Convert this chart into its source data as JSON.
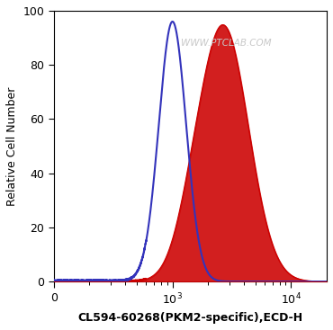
{
  "title": "",
  "xlabel": "CL594-60268(PKM2-specific),ECD-H",
  "ylabel": "Relative Cell Number",
  "xlim_min_log": 2.0,
  "xlim_max_log": 4.3,
  "ylim": [
    0,
    100
  ],
  "yticks": [
    0,
    20,
    40,
    60,
    80,
    100
  ],
  "xticks_pos": [
    100,
    1000,
    10000
  ],
  "xticks_labels": [
    "0",
    "$10^3$",
    "$10^4$"
  ],
  "blue_peak_log": 3.0,
  "blue_sigma": 0.115,
  "blue_height": 96,
  "red_peak_log": 3.43,
  "red_sigma": 0.21,
  "red_height": 94,
  "red_shoulder_log": 3.15,
  "red_shoulder_sigma": 0.13,
  "red_shoulder_height": 8,
  "blue_color": "#3333bb",
  "red_color": "#cc0000",
  "watermark": "WWW.PTCLAB.COM",
  "watermark_color": "#c8c8c8",
  "bg_color": "#ffffff",
  "noise_height": 1.5
}
